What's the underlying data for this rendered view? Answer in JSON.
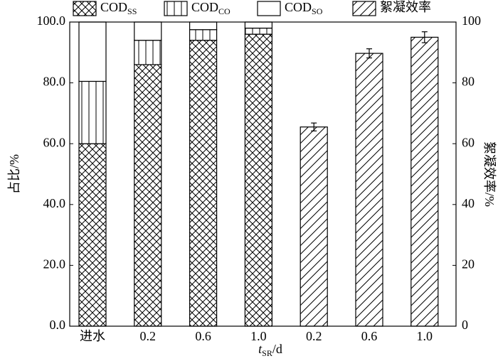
{
  "chart_data": {
    "type": "bar",
    "stacked": true,
    "categories": [
      "进水",
      "0.2",
      "0.6",
      "1.0",
      "0.2",
      "0.6",
      "1.0"
    ],
    "series": [
      {
        "name": "COD",
        "name_sub": "SS",
        "color": "#000000",
        "pattern": "crosshatch",
        "axis": "y",
        "values": [
          60,
          86,
          94,
          96,
          null,
          null,
          null
        ]
      },
      {
        "name": "COD",
        "name_sub": "CO",
        "color": "#000000",
        "pattern": "vertical",
        "axis": "y",
        "values": [
          20.5,
          8,
          3.5,
          2,
          null,
          null,
          null
        ]
      },
      {
        "name": "COD",
        "name_sub": "SO",
        "color": "#000000",
        "pattern": "none",
        "axis": "y",
        "values": [
          19.5,
          6,
          2.5,
          2,
          null,
          null,
          null
        ]
      },
      {
        "name": "絮凝效率",
        "color": "#000000",
        "pattern": "diagonal",
        "axis": "y2",
        "values": [
          null,
          null,
          null,
          null,
          65.5,
          89.7,
          95
        ],
        "errors": [
          null,
          null,
          null,
          null,
          1.3,
          1.5,
          1.8
        ]
      }
    ],
    "y_label": "占比/%",
    "y2_label": "絮凝效率/%",
    "x_label": {
      "main": "t",
      "sub": "SR",
      "unit": "/d"
    },
    "ylim": [
      0,
      100
    ],
    "yticks": [
      {
        "value": 0,
        "label": "0.0"
      },
      {
        "value": 20,
        "label": "20.0"
      },
      {
        "value": 40,
        "label": "40.0"
      },
      {
        "value": 60,
        "label": "60.0"
      },
      {
        "value": 80,
        "label": "80.0"
      },
      {
        "value": 100,
        "label": "100.0"
      }
    ],
    "y2lim": [
      0,
      100
    ],
    "y2ticks": [
      0,
      20,
      40,
      60,
      80,
      100
    ],
    "legend": "top"
  }
}
